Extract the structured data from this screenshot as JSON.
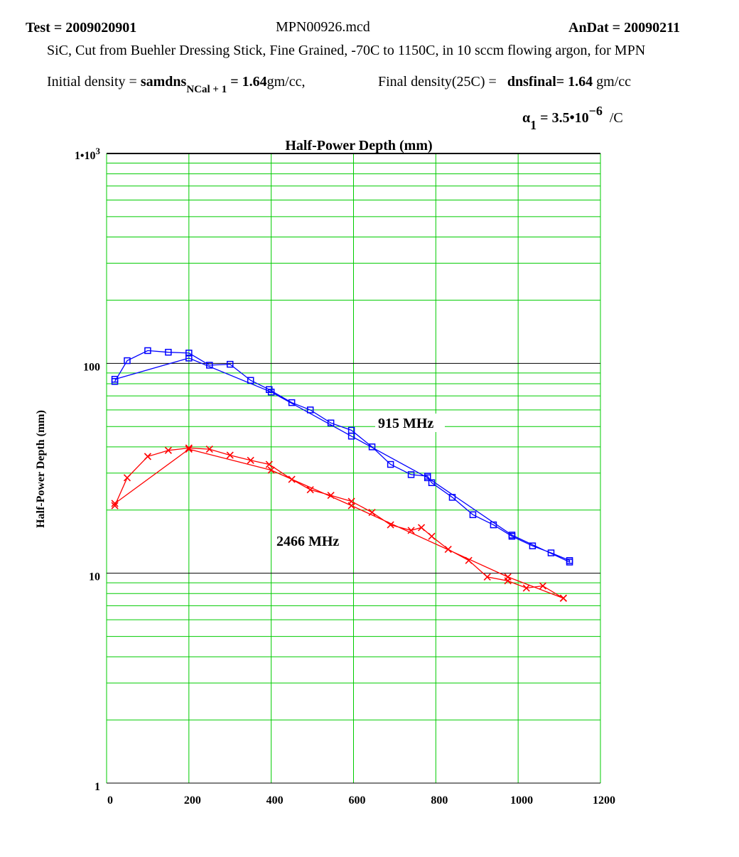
{
  "header": {
    "test_label": "Test",
    "test_value": "2009020901",
    "file": "MPN00926.mcd",
    "andat_label": "AnDat",
    "andat_value": "20090211",
    "description": "SiC, Cut from Buehler Dressing Stick, Fine Grained,  -70C  to 1150C, in 10 sccm  flowing argon, for MPN",
    "initial_density_label": "Initial density =",
    "initial_density_var": "samdns",
    "initial_density_sub": "NCal + 1",
    "initial_density_value": "= 1.64",
    "initial_density_unit": "gm/cc,",
    "final_density_label": "Final density(25C) =",
    "final_density_var": "dnsfinal",
    "final_density_value": "= 1.64",
    "final_density_unit": "gm/cc",
    "alpha_symbol": "α",
    "alpha_sub": "1",
    "alpha_value": "= 3.5•10",
    "alpha_exp": "−6",
    "alpha_unit": "/C"
  },
  "chart_data": {
    "type": "line",
    "title": "Half-Power Depth (mm)",
    "xlabel": "",
    "ylabel": "Half-Power Depth (mm)",
    "xlim": [
      0,
      1200
    ],
    "ylim": [
      1,
      1000
    ],
    "y_scale": "log",
    "grid": true,
    "x_ticks": [
      "0",
      "200",
      "400",
      "600",
      "800",
      "1000",
      "1200"
    ],
    "y_ticks": [
      {
        "value": 1000,
        "label": "1•10",
        "exp": "3"
      },
      {
        "value": 100,
        "label": "100",
        "exp": ""
      },
      {
        "value": 10,
        "label": "10",
        "exp": ""
      },
      {
        "value": 1,
        "label": "1",
        "exp": ""
      }
    ],
    "series": [
      {
        "name": "915 MHz",
        "color": "#0000ff",
        "marker": "square",
        "x": [
          20,
          50,
          100,
          150,
          200,
          250,
          300,
          350,
          395,
          450,
          495,
          545,
          595,
          645,
          690,
          740,
          780,
          790,
          840,
          890,
          940,
          985,
          1035,
          1080,
          1125,
          1125,
          985,
          780,
          595,
          400,
          200,
          20
        ],
        "y": [
          82,
          103,
          115,
          113,
          112,
          98,
          99,
          83,
          75,
          65,
          60,
          52,
          48,
          40,
          33,
          29.5,
          29,
          27,
          23,
          19,
          17,
          15,
          13.5,
          12.5,
          11.5,
          11.3,
          15.2,
          28.5,
          45,
          73,
          106,
          84
        ]
      },
      {
        "name": "2466 MHz",
        "color": "#ff0000",
        "marker": "x",
        "x": [
          20,
          50,
          100,
          150,
          200,
          250,
          300,
          350,
          395,
          450,
          495,
          545,
          595,
          645,
          690,
          740,
          765,
          790,
          830,
          880,
          925,
          975,
          1020,
          1060,
          1110,
          1110,
          975,
          595,
          400,
          200,
          20
        ],
        "y": [
          21,
          28.5,
          36,
          38.5,
          39.5,
          39,
          36.5,
          34.5,
          33,
          28,
          25,
          23.5,
          22,
          19.5,
          17,
          16,
          16.5,
          15,
          13,
          11.5,
          9.6,
          9.2,
          8.5,
          8.7,
          7.6,
          7.6,
          9.6,
          21,
          31,
          39,
          21.5
        ]
      }
    ]
  }
}
